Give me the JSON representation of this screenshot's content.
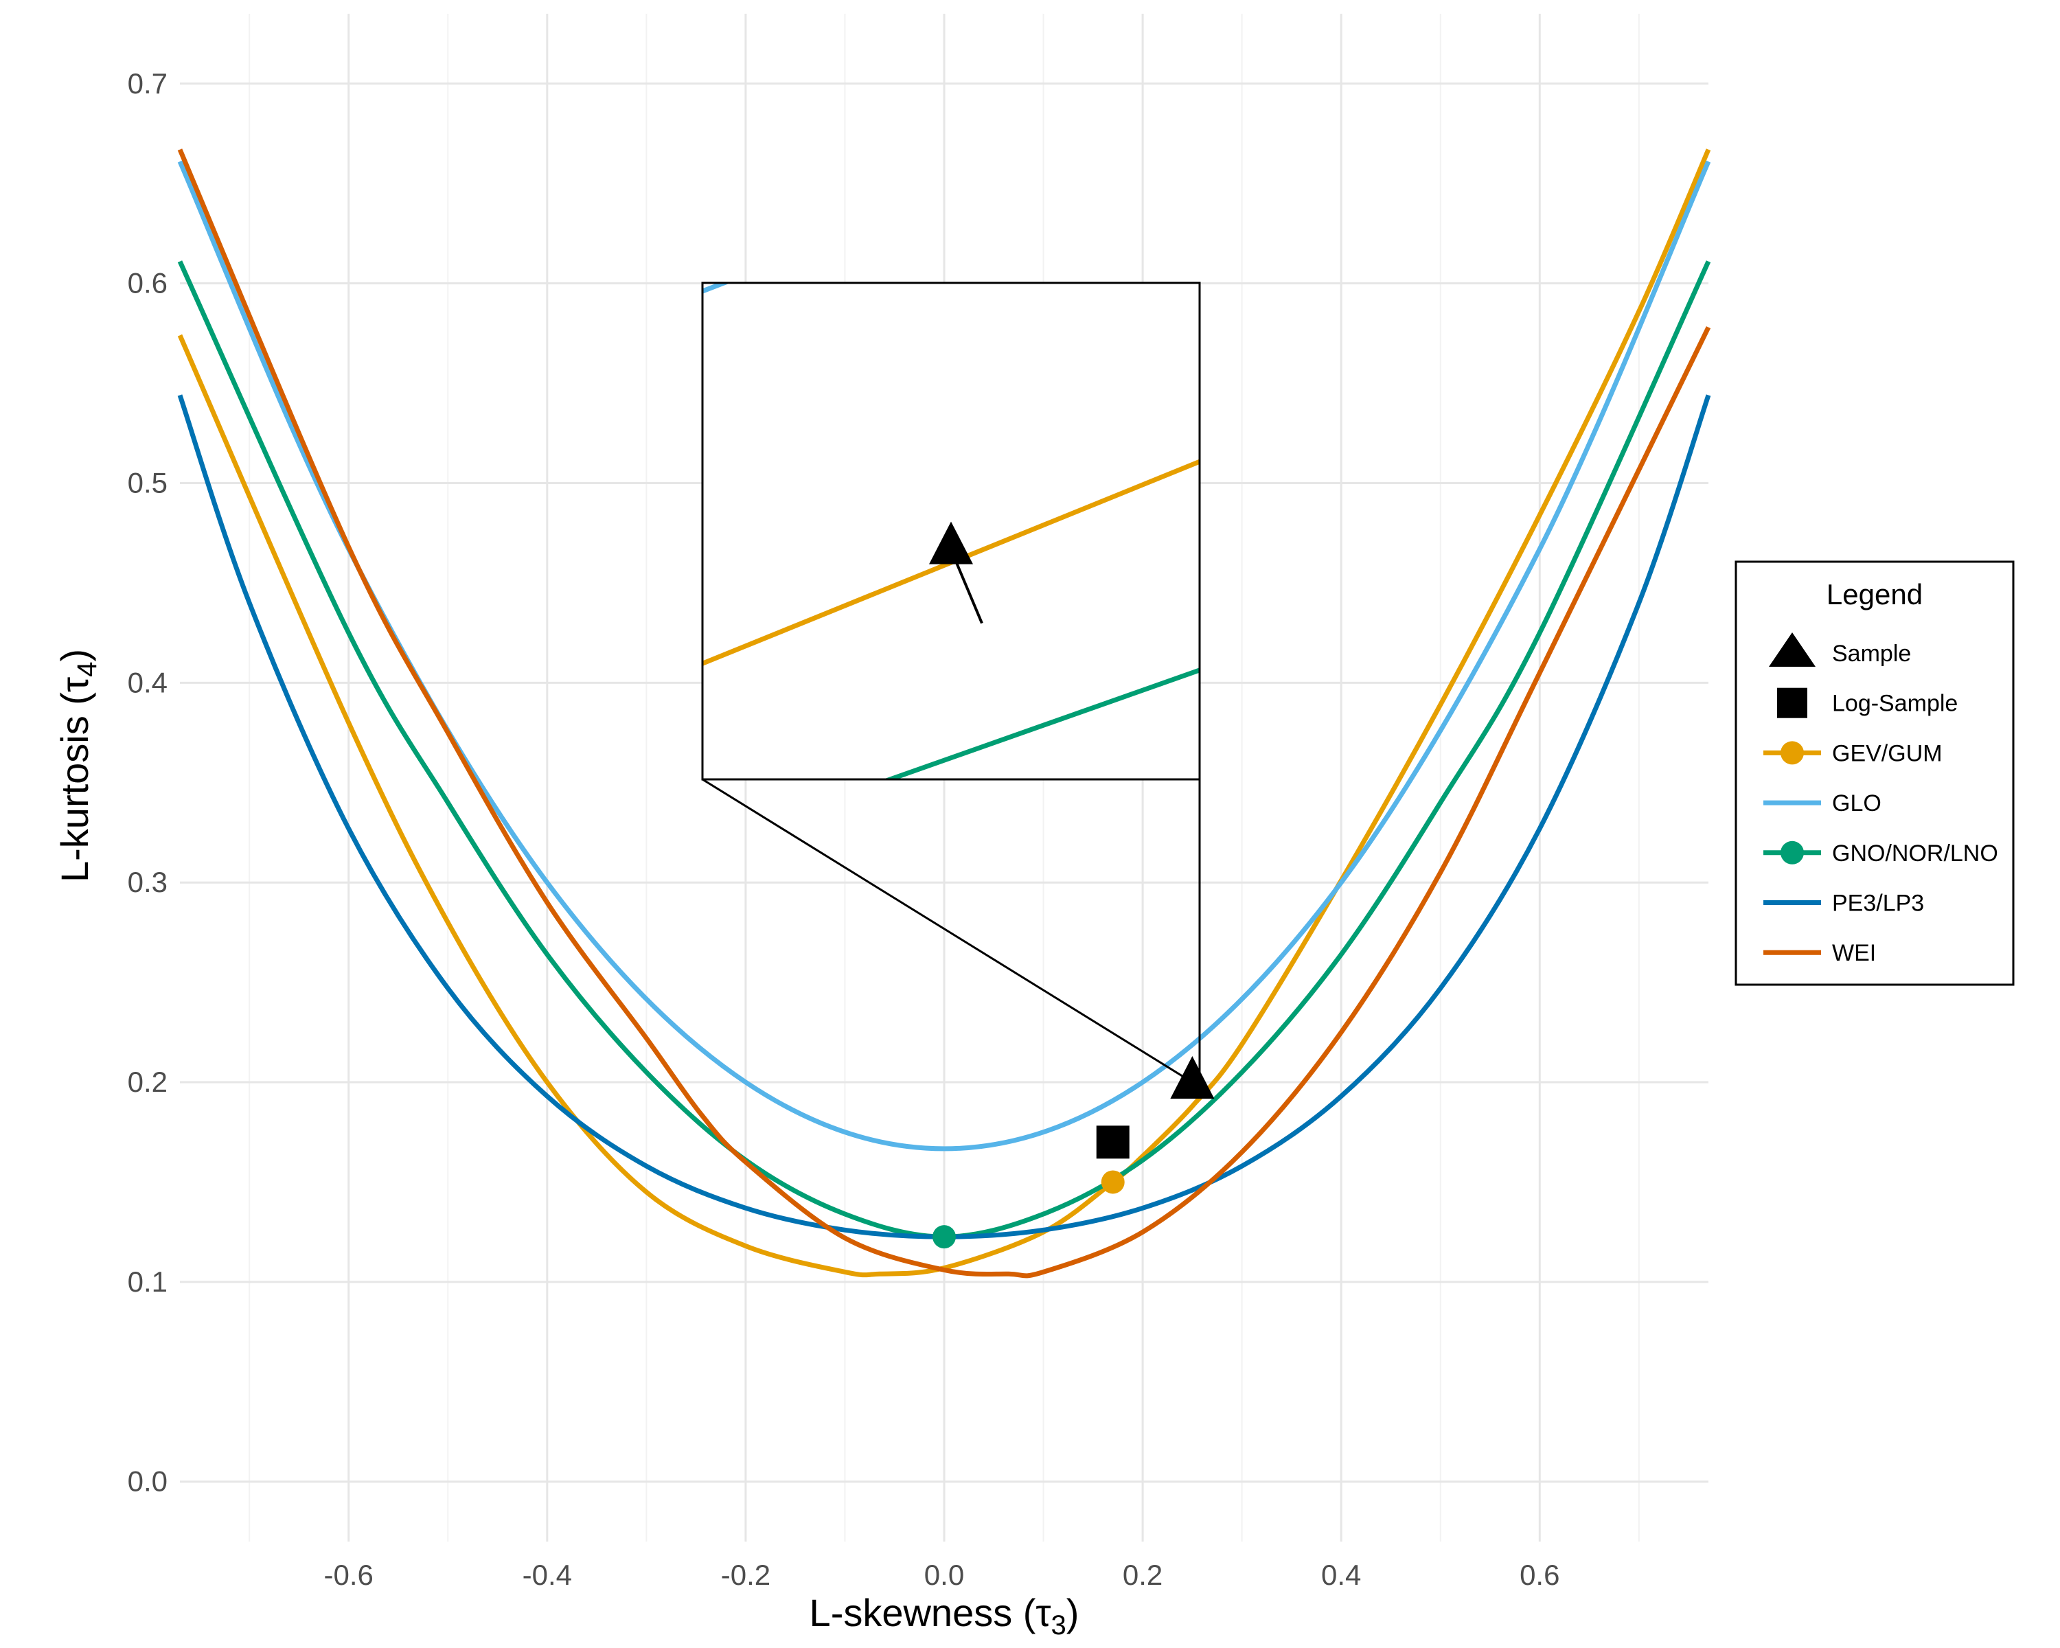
{
  "chart_data": {
    "type": "line",
    "xlabel": "L-skewness (τ",
    "xlabel_sub": "3",
    "xlabel_end": ")",
    "ylabel": "L-kurtosis (τ",
    "ylabel_sub": "4",
    "ylabel_end": ")",
    "xlim": [
      -0.77,
      0.77
    ],
    "ylim": [
      -0.03,
      0.735
    ],
    "x_ticks": [
      -0.6,
      -0.4,
      -0.2,
      0.0,
      0.2,
      0.4,
      0.6
    ],
    "x_tick_labels": [
      "-0.6",
      "-0.4",
      "-0.2",
      "0.0",
      "0.2",
      "0.4",
      "0.6"
    ],
    "y_ticks": [
      0.0,
      0.1,
      0.2,
      0.3,
      0.4,
      0.5,
      0.6,
      0.7
    ],
    "y_tick_labels": [
      "0.0",
      "0.1",
      "0.2",
      "0.3",
      "0.4",
      "0.5",
      "0.6",
      "0.7"
    ],
    "grid": true,
    "legend": {
      "title": "Legend",
      "placement": "right",
      "entries": [
        {
          "label": "Sample",
          "kind": "triangle",
          "color": "#000000"
        },
        {
          "label": "Log-Sample",
          "kind": "square",
          "color": "#000000"
        },
        {
          "label": "GEV/GUM",
          "kind": "line-point",
          "color": "#E69F00"
        },
        {
          "label": "GLO",
          "kind": "line",
          "color": "#56B4E9"
        },
        {
          "label": "GNO/NOR/LNO",
          "kind": "line-point",
          "color": "#009E73"
        },
        {
          "label": "PE3/LP3",
          "kind": "line",
          "color": "#0072B2"
        },
        {
          "label": "WEI",
          "kind": "line",
          "color": "#D55E00"
        }
      ]
    },
    "series": [
      {
        "name": "GEV/GUM",
        "color": "#E69F00",
        "x": [
          -0.77,
          -0.6,
          -0.5,
          -0.4,
          -0.3,
          -0.2,
          -0.1,
          -0.065,
          0.0,
          0.1,
          0.17,
          0.2,
          0.25,
          0.3,
          0.4,
          0.5,
          0.6,
          0.7,
          0.77
        ],
        "y": [
          0.574,
          0.38,
          0.28,
          0.2,
          0.145,
          0.118,
          0.105,
          0.104,
          0.107,
          0.125,
          0.15,
          0.163,
          0.188,
          0.219,
          0.301,
          0.389,
          0.484,
          0.586,
          0.667
        ]
      },
      {
        "name": "GLO",
        "color": "#56B4E9",
        "x": [
          -0.77,
          -0.6,
          -0.4,
          -0.2,
          0.0,
          0.2,
          0.4,
          0.6,
          0.77
        ],
        "y": [
          0.661,
          0.467,
          0.3,
          0.2,
          0.1667,
          0.2,
          0.3,
          0.467,
          0.661
        ]
      },
      {
        "name": "GNO/NOR/LNO",
        "color": "#009E73",
        "x": [
          -0.77,
          -0.6,
          -0.5,
          -0.4,
          -0.3,
          -0.2,
          -0.1,
          0.0,
          0.1,
          0.2,
          0.3,
          0.4,
          0.5,
          0.6,
          0.77
        ],
        "y": [
          0.611,
          0.425,
          0.34,
          0.264,
          0.205,
          0.161,
          0.134,
          0.1226,
          0.134,
          0.161,
          0.205,
          0.264,
          0.34,
          0.425,
          0.611
        ]
      },
      {
        "name": "PE3/LP3",
        "color": "#0072B2",
        "x": [
          -0.77,
          -0.7,
          -0.6,
          -0.5,
          -0.4,
          -0.3,
          -0.2,
          -0.1,
          0.0,
          0.1,
          0.2,
          0.3,
          0.4,
          0.5,
          0.6,
          0.7,
          0.77
        ],
        "y": [
          0.544,
          0.44,
          0.327,
          0.247,
          0.193,
          0.158,
          0.137,
          0.126,
          0.1226,
          0.126,
          0.137,
          0.158,
          0.193,
          0.247,
          0.327,
          0.44,
          0.544
        ]
      },
      {
        "name": "WEI",
        "color": "#D55E00",
        "x": [
          -0.77,
          -0.6,
          -0.5,
          -0.4,
          -0.3,
          -0.245,
          -0.2,
          -0.1,
          0.0,
          0.065,
          0.1,
          0.2,
          0.3,
          0.4,
          0.5,
          0.6,
          0.77
        ],
        "y": [
          0.667,
          0.468,
          0.375,
          0.29,
          0.222,
          0.184,
          0.16,
          0.122,
          0.106,
          0.104,
          0.105,
          0.125,
          0.165,
          0.225,
          0.305,
          0.405,
          0.578
        ]
      }
    ],
    "points": [
      {
        "label": "Sample",
        "shape": "triangle",
        "x": 0.25,
        "y": 0.2,
        "color": "#000000"
      },
      {
        "label": "Log-Sample",
        "shape": "square",
        "x": 0.17,
        "y": 0.17,
        "color": "#000000"
      },
      {
        "label": "GEV/GUM",
        "shape": "circle",
        "x": 0.17,
        "y": 0.15,
        "color": "#E69F00"
      },
      {
        "label": "GNO/NOR/LNO",
        "shape": "circle",
        "x": 0.0,
        "y": 0.1226,
        "color": "#009E73"
      }
    ],
    "inset": {
      "description": "zoomed view around Sample point",
      "x_range": [
        0.235,
        0.265
      ],
      "y_range": [
        0.186,
        0.216
      ]
    }
  }
}
